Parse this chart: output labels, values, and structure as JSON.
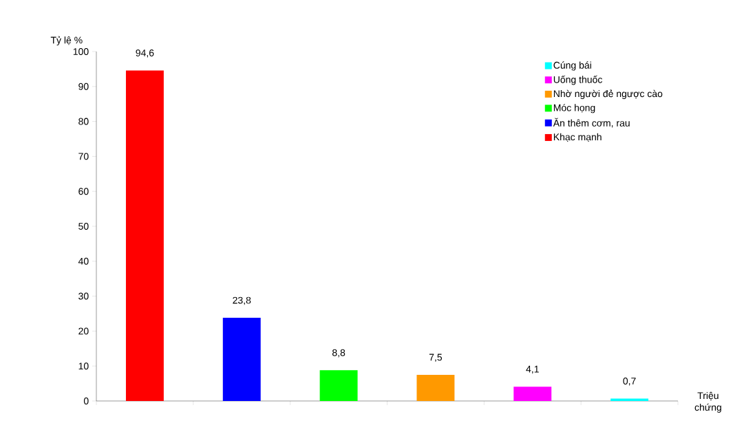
{
  "chart_data": {
    "type": "bar",
    "xlabel": "Triệu chứng",
    "ylabel": "Tỷ lệ %",
    "categories": [
      null,
      null,
      null,
      null,
      null,
      null
    ],
    "series": [
      {
        "name": "Khạc mạnh",
        "color": "#ff0000",
        "values": [
          94.6,
          null,
          null,
          null,
          null,
          null
        ],
        "value_labels": [
          "94,6",
          null,
          null,
          null,
          null,
          null
        ]
      },
      {
        "name": "Ăn thêm cơm, rau",
        "color": "#0000ff",
        "values": [
          null,
          23.8,
          null,
          null,
          null,
          null
        ],
        "value_labels": [
          null,
          "23,8",
          null,
          null,
          null,
          null
        ]
      },
      {
        "name": "Móc họng",
        "color": "#00ff00",
        "values": [
          null,
          null,
          8.8,
          null,
          null,
          null
        ],
        "value_labels": [
          null,
          null,
          "8,8",
          null,
          null,
          null
        ]
      },
      {
        "name": "Nhờ người đẻ ngược cào",
        "color": "#ff9900",
        "values": [
          null,
          null,
          null,
          7.5,
          null,
          null
        ],
        "value_labels": [
          null,
          null,
          null,
          "7,5",
          null,
          null
        ]
      },
      {
        "name": "Uống thuốc",
        "color": "#ff00ff",
        "values": [
          null,
          null,
          null,
          null,
          4.1,
          null
        ],
        "value_labels": [
          null,
          null,
          null,
          null,
          "4,1",
          null
        ]
      },
      {
        "name": "Cúng bái",
        "color": "#00ffff",
        "values": [
          null,
          null,
          null,
          null,
          null,
          0.7
        ],
        "value_labels": [
          null,
          null,
          null,
          null,
          null,
          "0,7"
        ]
      }
    ],
    "ylim": [
      0,
      100
    ],
    "yticks": [
      0,
      10,
      20,
      30,
      40,
      50,
      60,
      70,
      80,
      90,
      100
    ],
    "grid": false,
    "legend": "top right"
  }
}
